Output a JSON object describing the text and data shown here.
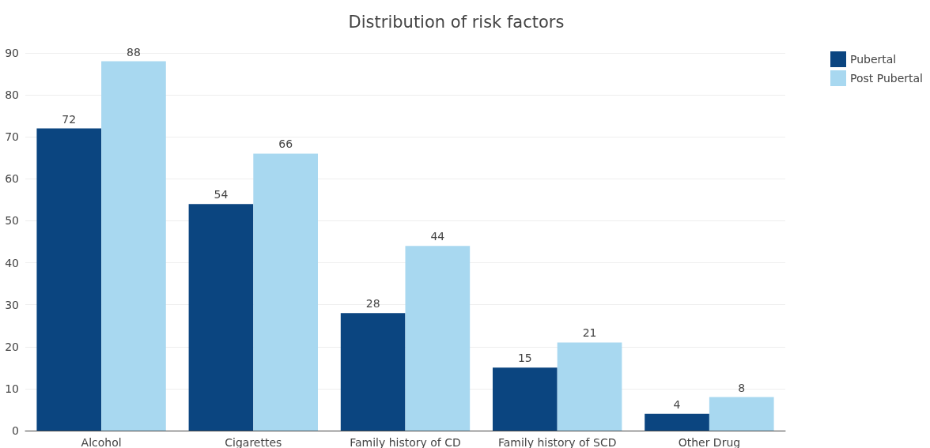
{
  "chart_data": {
    "type": "bar",
    "title": "Distribution of risk factors",
    "categories": [
      "Alcohol",
      "Cigarettes",
      "Family history of CD",
      "Family history of SCD",
      "Other Drug"
    ],
    "series": [
      {
        "name": "Pubertal",
        "color": "#0b4580",
        "values": [
          72,
          54,
          28,
          15,
          4
        ]
      },
      {
        "name": "Post Pubertal",
        "color": "#a8d8f0",
        "values": [
          88,
          66,
          44,
          21,
          8
        ]
      }
    ],
    "ylim": [
      0,
      90
    ],
    "yticks": [
      0,
      10,
      20,
      30,
      40,
      50,
      60,
      70,
      80,
      90
    ],
    "grid": "y",
    "legend": "top right",
    "data_labels": true
  }
}
